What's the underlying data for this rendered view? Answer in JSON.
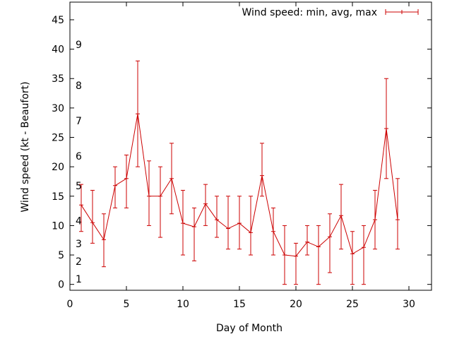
{
  "chart_data": {
    "type": "line",
    "xlabel": "Day of Month",
    "ylabel": "Wind speed (kt - Beaufort)",
    "xlim": [
      0,
      32
    ],
    "ylim": [
      -1,
      48
    ],
    "xticks": [
      0,
      5,
      10,
      15,
      20,
      25,
      30
    ],
    "yticks": [
      0,
      5,
      10,
      15,
      20,
      25,
      30,
      35,
      40,
      45
    ],
    "grid": false,
    "legend_position": "top-right",
    "color": "#cc0000",
    "series": [
      {
        "name": "Wind speed: min, avg, max",
        "x": [
          1,
          2,
          3,
          4,
          5,
          6,
          7,
          8,
          9,
          10,
          11,
          12,
          13,
          14,
          15,
          16,
          17,
          18,
          19,
          20,
          21,
          22,
          23,
          24,
          25,
          26,
          27,
          28,
          29
        ],
        "avg": [
          13.5,
          10.5,
          7.6,
          16.8,
          18,
          29,
          15,
          15,
          18,
          10.4,
          9.8,
          13.7,
          11,
          9.5,
          10.4,
          8.8,
          18.5,
          9,
          5,
          4.8,
          7.2,
          6.4,
          8.1,
          11.7,
          5.2,
          6.3,
          11,
          26.5,
          11
        ],
        "min": [
          9,
          7,
          3,
          13,
          13,
          20,
          10,
          8,
          12,
          5,
          4,
          10,
          8,
          6,
          6,
          5,
          15,
          5,
          0,
          0,
          5,
          0,
          2,
          6,
          0,
          0,
          6,
          18,
          6
        ],
        "max": [
          17,
          16,
          12,
          20,
          22,
          38,
          21,
          20,
          24,
          16,
          13,
          17,
          15,
          15,
          15,
          15,
          24,
          13,
          10,
          7,
          10,
          10,
          12,
          17,
          9,
          10,
          16,
          35,
          18
        ]
      }
    ],
    "annotations": [
      {
        "text": "1",
        "y": 0.9
      },
      {
        "text": "2",
        "y": 3.9
      },
      {
        "text": "3",
        "y": 6.9
      },
      {
        "text": "4",
        "y": 10.8
      },
      {
        "text": "5",
        "y": 16.8
      },
      {
        "text": "6",
        "y": 21.8
      },
      {
        "text": "7",
        "y": 27.8
      },
      {
        "text": "8",
        "y": 33.8
      },
      {
        "text": "9",
        "y": 40.8
      }
    ]
  }
}
